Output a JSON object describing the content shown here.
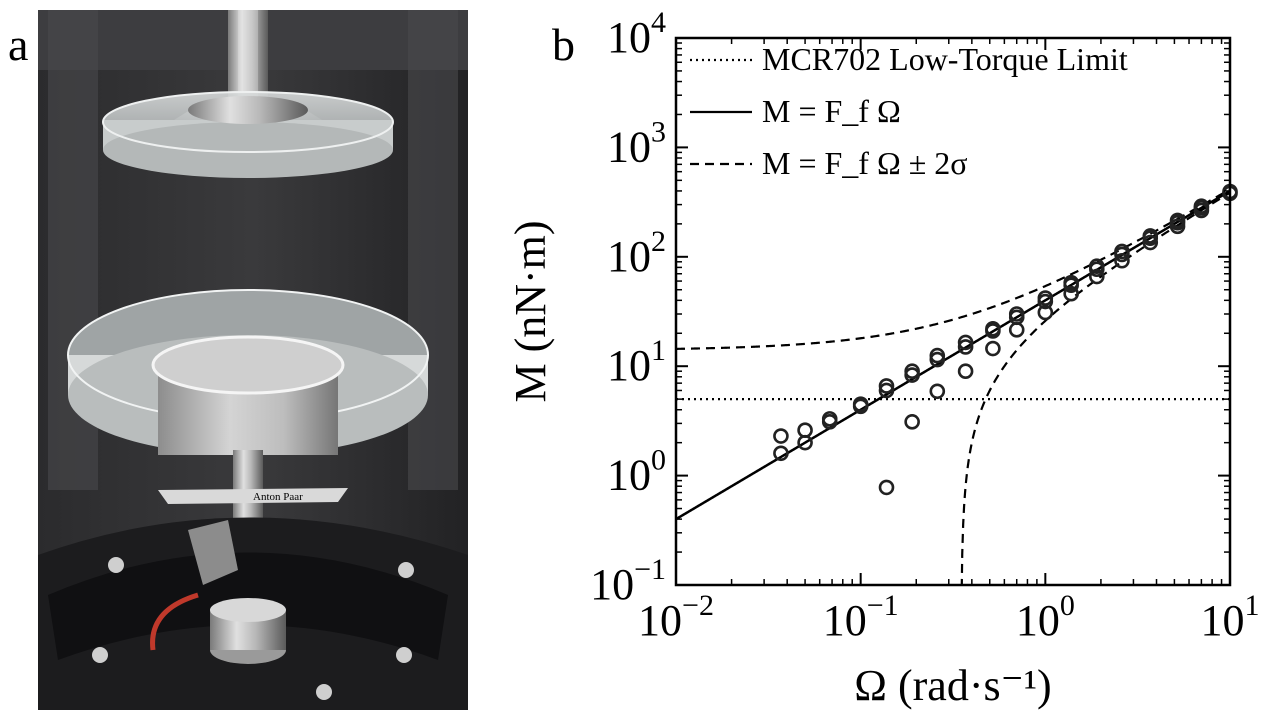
{
  "panels": {
    "a_label": "a",
    "b_label": "b"
  },
  "photo": {
    "brand_text": "Anton Paar"
  },
  "chart_data": {
    "type": "scatter",
    "xscale": "log",
    "yscale": "log",
    "xlim": [
      0.01,
      10
    ],
    "ylim": [
      0.1,
      10000
    ],
    "xlabel": "Ω (rad·s⁻¹)",
    "ylabel": "M (nN·m)",
    "xtick_exponents": [
      -2,
      -1,
      0,
      1
    ],
    "ytick_exponents": [
      -1,
      0,
      1,
      2,
      3,
      4
    ],
    "legend_placement": "top-left",
    "legend": [
      {
        "style": "dotted",
        "label": "MCR702 Low-Torque Limit"
      },
      {
        "style": "solid",
        "label": "M = F_f Ω"
      },
      {
        "style": "dashed",
        "label": "M = F_f Ω ± 2σ"
      }
    ],
    "lines": {
      "low_torque_limit": 5.0,
      "Ff": 40,
      "two_sigma": 14
    },
    "points": [
      [
        0.037,
        2.3
      ],
      [
        0.037,
        1.6
      ],
      [
        0.05,
        2.6
      ],
      [
        0.05,
        2.0
      ],
      [
        0.068,
        3.3
      ],
      [
        0.068,
        3.1
      ],
      [
        0.1,
        4.5
      ],
      [
        0.1,
        4.3
      ],
      [
        0.138,
        6.6
      ],
      [
        0.138,
        6.0
      ],
      [
        0.138,
        0.78
      ],
      [
        0.19,
        9.0
      ],
      [
        0.19,
        8.3
      ],
      [
        0.19,
        3.1
      ],
      [
        0.26,
        12.5
      ],
      [
        0.26,
        11.5
      ],
      [
        0.26,
        5.9
      ],
      [
        0.37,
        16.5
      ],
      [
        0.37,
        15.0
      ],
      [
        0.37,
        9.0
      ],
      [
        0.52,
        22.0
      ],
      [
        0.52,
        21.0
      ],
      [
        0.52,
        14.5
      ],
      [
        0.7,
        30.0
      ],
      [
        0.7,
        28.0
      ],
      [
        0.7,
        21.5
      ],
      [
        1.0,
        42.0
      ],
      [
        1.0,
        39.0
      ],
      [
        1.0,
        31.0
      ],
      [
        1.38,
        58.0
      ],
      [
        1.38,
        55.0
      ],
      [
        1.38,
        46.0
      ],
      [
        1.9,
        82.0
      ],
      [
        1.9,
        77.0
      ],
      [
        1.9,
        66.0
      ],
      [
        2.6,
        112.0
      ],
      [
        2.6,
        105.0
      ],
      [
        2.6,
        92.0
      ],
      [
        3.7,
        155.0
      ],
      [
        3.7,
        148.0
      ],
      [
        3.7,
        135.0
      ],
      [
        5.2,
        215.0
      ],
      [
        5.2,
        205.0
      ],
      [
        5.2,
        190.0
      ],
      [
        7.0,
        290.0
      ],
      [
        7.0,
        280.0
      ],
      [
        7.0,
        265.0
      ],
      [
        10.0,
        395.0
      ],
      [
        10.0,
        380.0
      ]
    ]
  }
}
